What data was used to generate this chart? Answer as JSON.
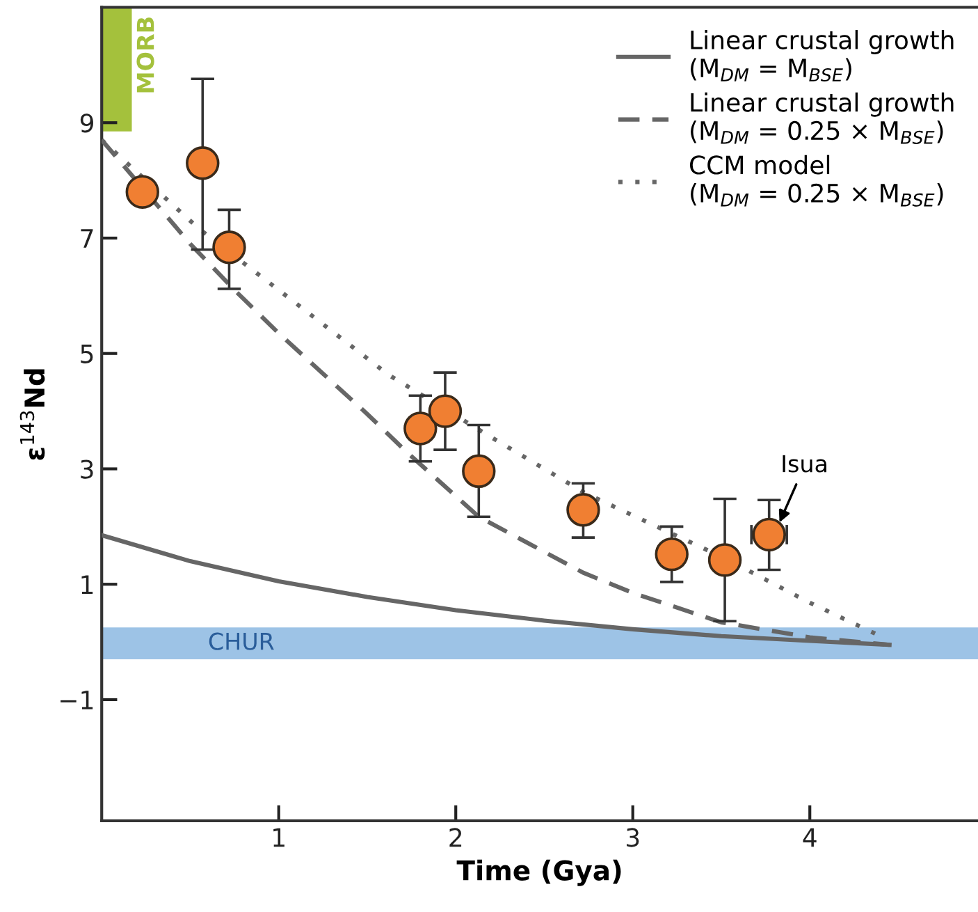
{
  "chart_data": {
    "type": "line",
    "xlabel": "Time (Gya)",
    "ylabel": "ε$^{143}$Nd",
    "xlim": [
      0,
      4.95
    ],
    "ylim": [
      -3.1,
      11
    ],
    "xticks": [
      1,
      2,
      3,
      4
    ],
    "yticks": [
      9,
      7,
      5,
      3,
      1,
      {
        "value": -1,
        "label": "−1"
      }
    ],
    "grid": false,
    "legend": "top right",
    "tick_labels": true,
    "series": [
      {
        "name": "MORB",
        "type": "bar",
        "color": "#a4c13c",
        "x": [
          0.085
        ],
        "base": [
          8.85
        ],
        "values": [
          2.15
        ]
      },
      {
        "name": "Linear crustal growth\n(M$_{DM}$ = M$_{BSE}$)",
        "line_style": "solid",
        "color": "#666666",
        "x": [
          0,
          0.5,
          1,
          1.5,
          2,
          2.5,
          3,
          3.5,
          4,
          4.45
        ],
        "values": [
          1.85,
          1.4,
          1.05,
          0.78,
          0.55,
          0.37,
          0.22,
          0.1,
          0.02,
          -0.05
        ]
      },
      {
        "name": "Linear crustal growth\n(M$_{DM}$ = 0.25 × M$_{BSE}$)",
        "line_style": "dashed",
        "color": "#666666",
        "x": [
          0,
          0.25,
          0.5,
          0.75,
          1,
          1.25,
          1.5,
          1.72,
          2.13,
          2.72,
          3.0,
          3.5,
          4.0,
          4.45
        ],
        "values": [
          8.7,
          7.8,
          6.9,
          6.1,
          5.35,
          4.65,
          3.95,
          3.3,
          2.17,
          1.2,
          0.85,
          0.34,
          0.08,
          -0.05
        ]
      },
      {
        "name": "CCM model\n(M$_{DM}$ = 0.25 × M$_{BSE}$)",
        "line_style": "dotted",
        "color": "#666666",
        "x": [
          0,
          0.55,
          1,
          1.62,
          2.2,
          2.73,
          3.52,
          4.0,
          4.4
        ],
        "values": [
          8.7,
          7.16,
          6.1,
          4.63,
          3.55,
          2.58,
          1.45,
          0.68,
          0.1
        ]
      },
      {
        "type": "scatter",
        "marker": "circle",
        "color": "#f07f32",
        "x": [
          0.23,
          0.57,
          0.72,
          1.8,
          1.94,
          2.13,
          2.72,
          3.22,
          3.52,
          3.77
        ],
        "values": [
          7.8,
          8.3,
          6.84,
          3.7,
          4.0,
          2.96,
          2.29,
          1.52,
          1.42,
          1.86
        ],
        "errors": [
          null,
          [
            6.8,
            9.76
          ],
          [
            6.12,
            7.49
          ],
          [
            3.13,
            4.27
          ],
          [
            3.33,
            4.67
          ],
          [
            2.17,
            3.76
          ],
          [
            1.81,
            2.75
          ],
          [
            1.04,
            2.0
          ],
          [
            0.36,
            2.48
          ],
          [
            1.25,
            2.46
          ]
        ],
        "xerrors": [
          null,
          null,
          null,
          null,
          null,
          null,
          null,
          null,
          null,
          [
            3.67,
            3.87
          ]
        ]
      }
    ],
    "bands": [
      {
        "axis": "y",
        "from": -0.3,
        "to": 0.25,
        "label": "CHUR",
        "color": "#9dc3e6"
      }
    ],
    "annotations": [
      {
        "text": "Isua",
        "x": 3.77,
        "y": 1.86
      }
    ]
  }
}
